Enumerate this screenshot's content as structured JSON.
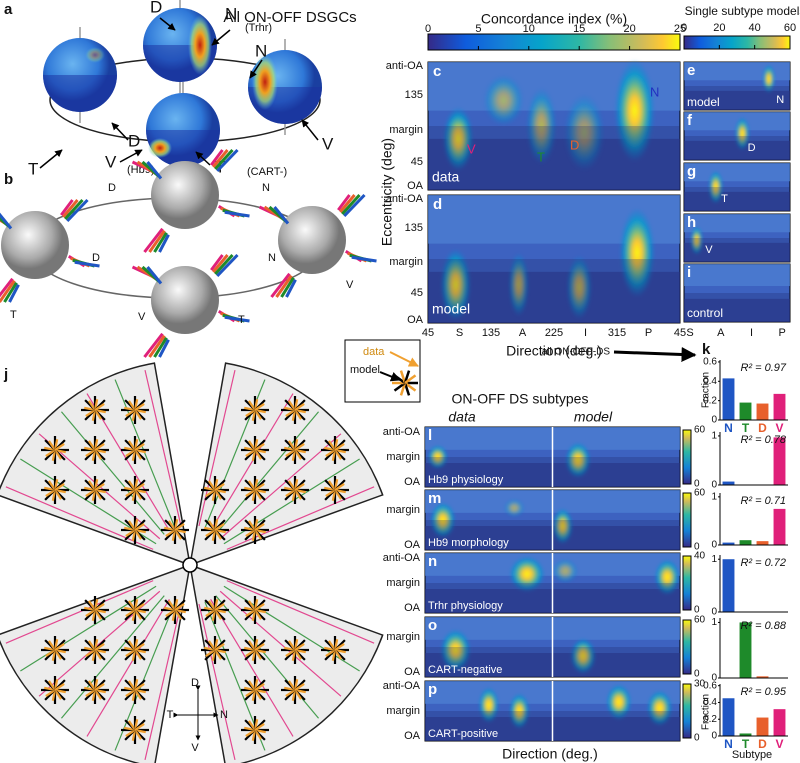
{
  "panel_a": {
    "letter": "a",
    "title": "All ON-OFF DSGCs",
    "labels": [
      "D",
      "N",
      "(Trhr)",
      "N",
      "V",
      "T",
      "D",
      "V",
      "(Hb9)",
      "T",
      "(CART-)"
    ]
  },
  "panel_b": {
    "letter": "b",
    "labels": [
      "D",
      "N",
      "D",
      "N",
      "V",
      "T",
      "V",
      "T"
    ]
  },
  "panel_cd": {
    "colorbar_title": "Concordance index (%)",
    "colorbar_ticks": [
      0,
      5,
      10,
      15,
      20,
      25
    ],
    "y_label": "Eccentricity (deg)",
    "x_label": "Direction (deg.)",
    "y_ticks": [
      "anti-OA",
      "135",
      "margin",
      "45",
      "OA"
    ],
    "x_ticks": [
      "45",
      "S",
      "135",
      "A",
      "225",
      "I",
      "315",
      "P",
      "45"
    ],
    "c": {
      "letter": "c",
      "tag": "data",
      "markers": [
        "N",
        "D",
        "V",
        "T"
      ]
    },
    "d": {
      "letter": "d",
      "tag": "model"
    }
  },
  "panel_ei": {
    "title": "Single subtype models",
    "colorbar_ticks": [
      0,
      20,
      40,
      60
    ],
    "x_ticks": [
      "S",
      "A",
      "I",
      "P"
    ],
    "panels": [
      {
        "letter": "e",
        "tag": "model",
        "marker": "N"
      },
      {
        "letter": "f",
        "marker": "D"
      },
      {
        "letter": "g",
        "marker": "T"
      },
      {
        "letter": "h",
        "marker": "V"
      },
      {
        "letter": "i",
        "tag": "control"
      }
    ]
  },
  "panel_j": {
    "letter": "j",
    "legend": [
      "data",
      "model"
    ],
    "compass": [
      "D",
      "T",
      "N",
      "V"
    ]
  },
  "panel_lp": {
    "title": "ON-OFF DS subtypes",
    "columns": [
      "data",
      "model"
    ],
    "y_ticks": [
      "anti-OA",
      "margin",
      "OA"
    ],
    "x_label": "Direction (deg.)",
    "panels": [
      {
        "letter": "l",
        "name": "Hb9 physiology",
        "colorbar_ticks": [
          0,
          60
        ]
      },
      {
        "letter": "m",
        "name": "Hb9 morphology",
        "colorbar_ticks": [
          0,
          60
        ]
      },
      {
        "letter": "n",
        "name": "Trhr physiology",
        "colorbar_ticks": [
          0,
          40
        ]
      },
      {
        "letter": "o",
        "name": "CART-negative",
        "colorbar_ticks": [
          0,
          60
        ]
      },
      {
        "letter": "p",
        "name": "CART-positive",
        "colorbar_ticks": [
          0,
          30
        ]
      }
    ]
  },
  "panel_k": {
    "letter": "k",
    "arrow_label": "all ON-OFF-DS",
    "y_label": "Fraction",
    "x_label": "Subtype"
  },
  "chart_data": [
    {
      "type": "bar",
      "categories": [
        "N",
        "T",
        "D",
        "V"
      ],
      "colors": [
        "#1f56c4",
        "#1e8a2a",
        "#e8602c",
        "#e0207a"
      ],
      "values": [
        0.43,
        0.18,
        0.17,
        0.27
      ],
      "ylim": [
        0,
        0.62
      ],
      "yticks": [
        0,
        0.2,
        0.4,
        0.6
      ],
      "annotation": "R² = 0.97"
    },
    {
      "type": "bar",
      "colors": [
        "#1f56c4",
        "#1e8a2a",
        "#e8602c",
        "#e0207a"
      ],
      "values": [
        0.07,
        0,
        0,
        0.97
      ],
      "ylim": [
        0,
        1.08
      ],
      "yticks": [
        0,
        1
      ],
      "annotation": "R² = 0.78"
    },
    {
      "type": "bar",
      "colors": [
        "#1f56c4",
        "#1e8a2a",
        "#e8602c",
        "#e0207a"
      ],
      "values": [
        0.05,
        0.1,
        0.08,
        0.75
      ],
      "ylim": [
        0,
        1.08
      ],
      "yticks": [
        0,
        1
      ],
      "annotation": "R² = 0.71"
    },
    {
      "type": "bar",
      "colors": [
        "#1f56c4",
        "#1e8a2a",
        "#e8602c",
        "#e0207a"
      ],
      "values": [
        1,
        0,
        0,
        0
      ],
      "ylim": [
        0,
        1.08
      ],
      "yticks": [
        0,
        1
      ],
      "annotation": "R² = 0.72"
    },
    {
      "type": "bar",
      "colors": [
        "#1f56c4",
        "#1e8a2a",
        "#e8602c",
        "#e0207a"
      ],
      "values": [
        0,
        1,
        0.03,
        0
      ],
      "ylim": [
        0,
        1.08
      ],
      "yticks": [
        0,
        1
      ],
      "annotation": "R² = 0.88"
    },
    {
      "type": "bar",
      "categories": [
        "N",
        "T",
        "D",
        "V"
      ],
      "colors": [
        "#1f56c4",
        "#1e8a2a",
        "#e8602c",
        "#e0207a"
      ],
      "values": [
        0.45,
        0.03,
        0.22,
        0.32
      ],
      "ylim": [
        0,
        0.62
      ],
      "yticks": [
        0,
        0.2,
        0.4,
        0.6
      ],
      "annotation": "R² = 0.95"
    }
  ]
}
